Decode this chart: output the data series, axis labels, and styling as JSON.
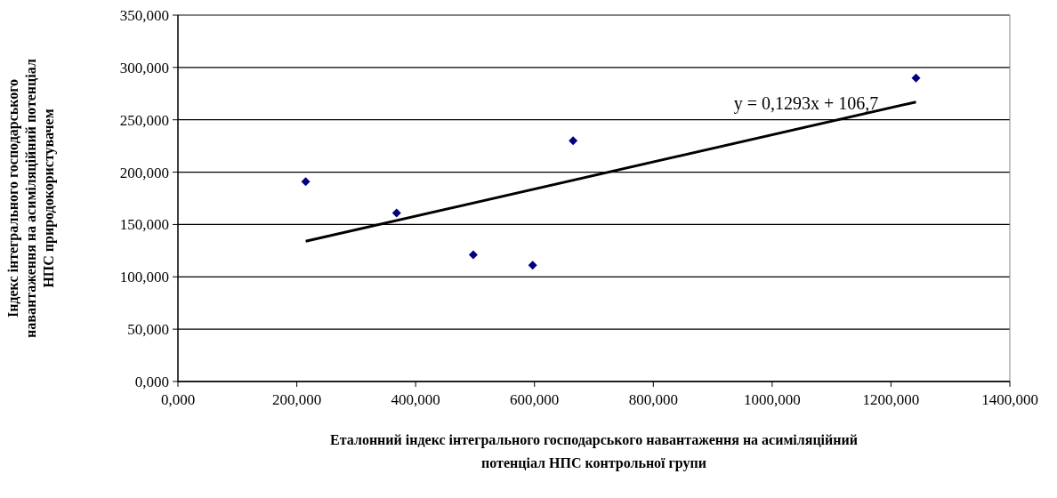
{
  "chart_data": {
    "type": "scatter",
    "xlabel": "Еталонний індекс інтегрального господарського навантаження на асиміляційний\nпотенціал НПС контрольної групи",
    "ylabel": "Індекс інтегрального господарського\nнавантаження на асиміляційний потенціал\nНПС природокористувачем",
    "series": [
      {
        "color": "#000080",
        "marker": "diamond",
        "x": [
          215,
          368,
          497,
          597,
          665,
          1242
        ],
        "values": [
          191,
          161,
          121,
          111,
          230,
          290
        ]
      },
      {
        "type": "line",
        "color": "#000000",
        "x": [
          215,
          1242
        ],
        "values": [
          134,
          267
        ]
      }
    ],
    "annotations": [
      "y = 0,1293x + 106,7"
    ],
    "xlim": [
      0,
      1400
    ],
    "xticks": [
      {
        "value": 0,
        "label": "0,000"
      },
      {
        "value": 200,
        "label": "200,000"
      },
      {
        "value": 400,
        "label": "400,000"
      },
      {
        "value": 600,
        "label": "600,000"
      },
      {
        "value": 800,
        "label": "800,000"
      },
      {
        "value": 1000,
        "label": "1000,000"
      },
      {
        "value": 1200,
        "label": "1200,000"
      },
      {
        "value": 1400,
        "label": "1400,000"
      }
    ],
    "ylim": [
      0,
      350
    ],
    "yticks": [
      {
        "value": 0,
        "label": "0,000"
      },
      {
        "value": 50,
        "label": "50,000"
      },
      {
        "value": 100,
        "label": "100,000"
      },
      {
        "value": 150,
        "label": "150,000"
      },
      {
        "value": 200,
        "label": "200,000"
      },
      {
        "value": 250,
        "label": "250,000"
      },
      {
        "value": 300,
        "label": "300,000"
      },
      {
        "value": 350,
        "label": "350,000"
      }
    ],
    "grid": "y"
  }
}
